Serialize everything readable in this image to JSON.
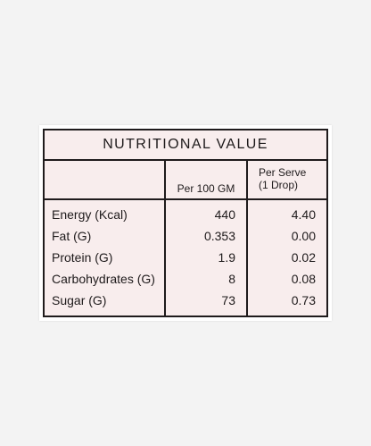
{
  "table": {
    "title": "NUTRITIONAL VALUE",
    "headers": {
      "per_100": "Per 100 GM",
      "per_serve": "Per Serve",
      "per_serve_sub": "(1 Drop)"
    },
    "rows": [
      {
        "name": "Energy (Kcal)",
        "per_100": "440",
        "per_serve": "4.40"
      },
      {
        "name": "Fat (G)",
        "per_100": "0.353",
        "per_serve": "0.00"
      },
      {
        "name": "Protein (G)",
        "per_100": "1.9",
        "per_serve": "0.02"
      },
      {
        "name": "Carbohydrates (G)",
        "per_100": "8",
        "per_serve": "0.08"
      },
      {
        "name": "Sugar (G)",
        "per_100": "73",
        "per_serve": "0.73"
      }
    ]
  },
  "colors": {
    "background": "#f3f3f3",
    "card": "#ffffff",
    "panel": "#f8eded",
    "border": "#1f1b1c",
    "text": "#1e1a1b"
  }
}
